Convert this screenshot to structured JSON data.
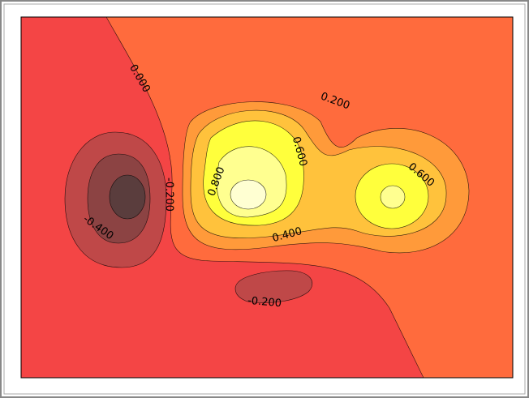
{
  "chart_data": {
    "type": "contour",
    "levels": [
      -0.8,
      -0.6,
      -0.4,
      -0.2,
      0,
      0.2,
      0.4,
      0.6,
      0.8,
      1.0,
      1.2
    ],
    "colors": [
      "#5a3d3d",
      "#8c4343",
      "#bf4848",
      "#f44545",
      "#ff6b3d",
      "#ff9a3a",
      "#ffc23c",
      "#ffff3c",
      "#ffff90",
      "#ffffd2"
    ],
    "contour_labels": [
      {
        "value": 0,
        "label": "0.000"
      },
      {
        "value": 0.2,
        "label": "0.200"
      },
      {
        "value": 0.6,
        "label": "0.600"
      },
      {
        "value": 0.8,
        "label": "0.800"
      },
      {
        "value": -0.2,
        "label": "-0.200"
      },
      {
        "value": -0.4,
        "label": "-0.400"
      },
      {
        "value": 0.4,
        "label": "0.400"
      },
      {
        "value": 0.6,
        "label": "0.600"
      },
      {
        "value": -0.2,
        "label": "-0.200"
      }
    ]
  }
}
